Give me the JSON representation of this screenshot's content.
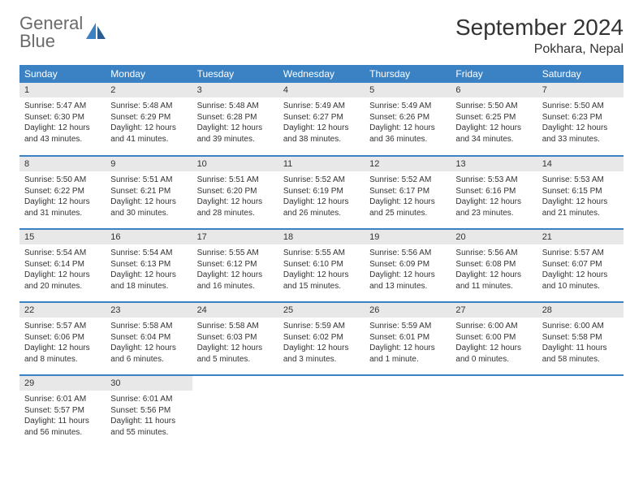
{
  "logo": {
    "word1": "General",
    "word2": "Blue"
  },
  "title": "September 2024",
  "location": "Pokhara, Nepal",
  "colors": {
    "accent": "#3b82c4",
    "daynum_bg": "#e8e8e8",
    "text": "#333333",
    "logo_gray": "#6a6a6a",
    "background": "#ffffff"
  },
  "typography": {
    "title_fontsize_pt": 21,
    "location_fontsize_pt": 12,
    "header_fontsize_pt": 9,
    "body_fontsize_pt": 7.5
  },
  "calendar": {
    "type": "table",
    "columns": [
      "Sunday",
      "Monday",
      "Tuesday",
      "Wednesday",
      "Thursday",
      "Friday",
      "Saturday"
    ],
    "weeks": [
      [
        {
          "n": "1",
          "sr": "Sunrise: 5:47 AM",
          "ss": "Sunset: 6:30 PM",
          "d1": "Daylight: 12 hours",
          "d2": "and 43 minutes."
        },
        {
          "n": "2",
          "sr": "Sunrise: 5:48 AM",
          "ss": "Sunset: 6:29 PM",
          "d1": "Daylight: 12 hours",
          "d2": "and 41 minutes."
        },
        {
          "n": "3",
          "sr": "Sunrise: 5:48 AM",
          "ss": "Sunset: 6:28 PM",
          "d1": "Daylight: 12 hours",
          "d2": "and 39 minutes."
        },
        {
          "n": "4",
          "sr": "Sunrise: 5:49 AM",
          "ss": "Sunset: 6:27 PM",
          "d1": "Daylight: 12 hours",
          "d2": "and 38 minutes."
        },
        {
          "n": "5",
          "sr": "Sunrise: 5:49 AM",
          "ss": "Sunset: 6:26 PM",
          "d1": "Daylight: 12 hours",
          "d2": "and 36 minutes."
        },
        {
          "n": "6",
          "sr": "Sunrise: 5:50 AM",
          "ss": "Sunset: 6:25 PM",
          "d1": "Daylight: 12 hours",
          "d2": "and 34 minutes."
        },
        {
          "n": "7",
          "sr": "Sunrise: 5:50 AM",
          "ss": "Sunset: 6:23 PM",
          "d1": "Daylight: 12 hours",
          "d2": "and 33 minutes."
        }
      ],
      [
        {
          "n": "8",
          "sr": "Sunrise: 5:50 AM",
          "ss": "Sunset: 6:22 PM",
          "d1": "Daylight: 12 hours",
          "d2": "and 31 minutes."
        },
        {
          "n": "9",
          "sr": "Sunrise: 5:51 AM",
          "ss": "Sunset: 6:21 PM",
          "d1": "Daylight: 12 hours",
          "d2": "and 30 minutes."
        },
        {
          "n": "10",
          "sr": "Sunrise: 5:51 AM",
          "ss": "Sunset: 6:20 PM",
          "d1": "Daylight: 12 hours",
          "d2": "and 28 minutes."
        },
        {
          "n": "11",
          "sr": "Sunrise: 5:52 AM",
          "ss": "Sunset: 6:19 PM",
          "d1": "Daylight: 12 hours",
          "d2": "and 26 minutes."
        },
        {
          "n": "12",
          "sr": "Sunrise: 5:52 AM",
          "ss": "Sunset: 6:17 PM",
          "d1": "Daylight: 12 hours",
          "d2": "and 25 minutes."
        },
        {
          "n": "13",
          "sr": "Sunrise: 5:53 AM",
          "ss": "Sunset: 6:16 PM",
          "d1": "Daylight: 12 hours",
          "d2": "and 23 minutes."
        },
        {
          "n": "14",
          "sr": "Sunrise: 5:53 AM",
          "ss": "Sunset: 6:15 PM",
          "d1": "Daylight: 12 hours",
          "d2": "and 21 minutes."
        }
      ],
      [
        {
          "n": "15",
          "sr": "Sunrise: 5:54 AM",
          "ss": "Sunset: 6:14 PM",
          "d1": "Daylight: 12 hours",
          "d2": "and 20 minutes."
        },
        {
          "n": "16",
          "sr": "Sunrise: 5:54 AM",
          "ss": "Sunset: 6:13 PM",
          "d1": "Daylight: 12 hours",
          "d2": "and 18 minutes."
        },
        {
          "n": "17",
          "sr": "Sunrise: 5:55 AM",
          "ss": "Sunset: 6:12 PM",
          "d1": "Daylight: 12 hours",
          "d2": "and 16 minutes."
        },
        {
          "n": "18",
          "sr": "Sunrise: 5:55 AM",
          "ss": "Sunset: 6:10 PM",
          "d1": "Daylight: 12 hours",
          "d2": "and 15 minutes."
        },
        {
          "n": "19",
          "sr": "Sunrise: 5:56 AM",
          "ss": "Sunset: 6:09 PM",
          "d1": "Daylight: 12 hours",
          "d2": "and 13 minutes."
        },
        {
          "n": "20",
          "sr": "Sunrise: 5:56 AM",
          "ss": "Sunset: 6:08 PM",
          "d1": "Daylight: 12 hours",
          "d2": "and 11 minutes."
        },
        {
          "n": "21",
          "sr": "Sunrise: 5:57 AM",
          "ss": "Sunset: 6:07 PM",
          "d1": "Daylight: 12 hours",
          "d2": "and 10 minutes."
        }
      ],
      [
        {
          "n": "22",
          "sr": "Sunrise: 5:57 AM",
          "ss": "Sunset: 6:06 PM",
          "d1": "Daylight: 12 hours",
          "d2": "and 8 minutes."
        },
        {
          "n": "23",
          "sr": "Sunrise: 5:58 AM",
          "ss": "Sunset: 6:04 PM",
          "d1": "Daylight: 12 hours",
          "d2": "and 6 minutes."
        },
        {
          "n": "24",
          "sr": "Sunrise: 5:58 AM",
          "ss": "Sunset: 6:03 PM",
          "d1": "Daylight: 12 hours",
          "d2": "and 5 minutes."
        },
        {
          "n": "25",
          "sr": "Sunrise: 5:59 AM",
          "ss": "Sunset: 6:02 PM",
          "d1": "Daylight: 12 hours",
          "d2": "and 3 minutes."
        },
        {
          "n": "26",
          "sr": "Sunrise: 5:59 AM",
          "ss": "Sunset: 6:01 PM",
          "d1": "Daylight: 12 hours",
          "d2": "and 1 minute."
        },
        {
          "n": "27",
          "sr": "Sunrise: 6:00 AM",
          "ss": "Sunset: 6:00 PM",
          "d1": "Daylight: 12 hours",
          "d2": "and 0 minutes."
        },
        {
          "n": "28",
          "sr": "Sunrise: 6:00 AM",
          "ss": "Sunset: 5:58 PM",
          "d1": "Daylight: 11 hours",
          "d2": "and 58 minutes."
        }
      ],
      [
        {
          "n": "29",
          "sr": "Sunrise: 6:01 AM",
          "ss": "Sunset: 5:57 PM",
          "d1": "Daylight: 11 hours",
          "d2": "and 56 minutes."
        },
        {
          "n": "30",
          "sr": "Sunrise: 6:01 AM",
          "ss": "Sunset: 5:56 PM",
          "d1": "Daylight: 11 hours",
          "d2": "and 55 minutes."
        },
        {
          "empty": true
        },
        {
          "empty": true
        },
        {
          "empty": true
        },
        {
          "empty": true
        },
        {
          "empty": true
        }
      ]
    ]
  }
}
